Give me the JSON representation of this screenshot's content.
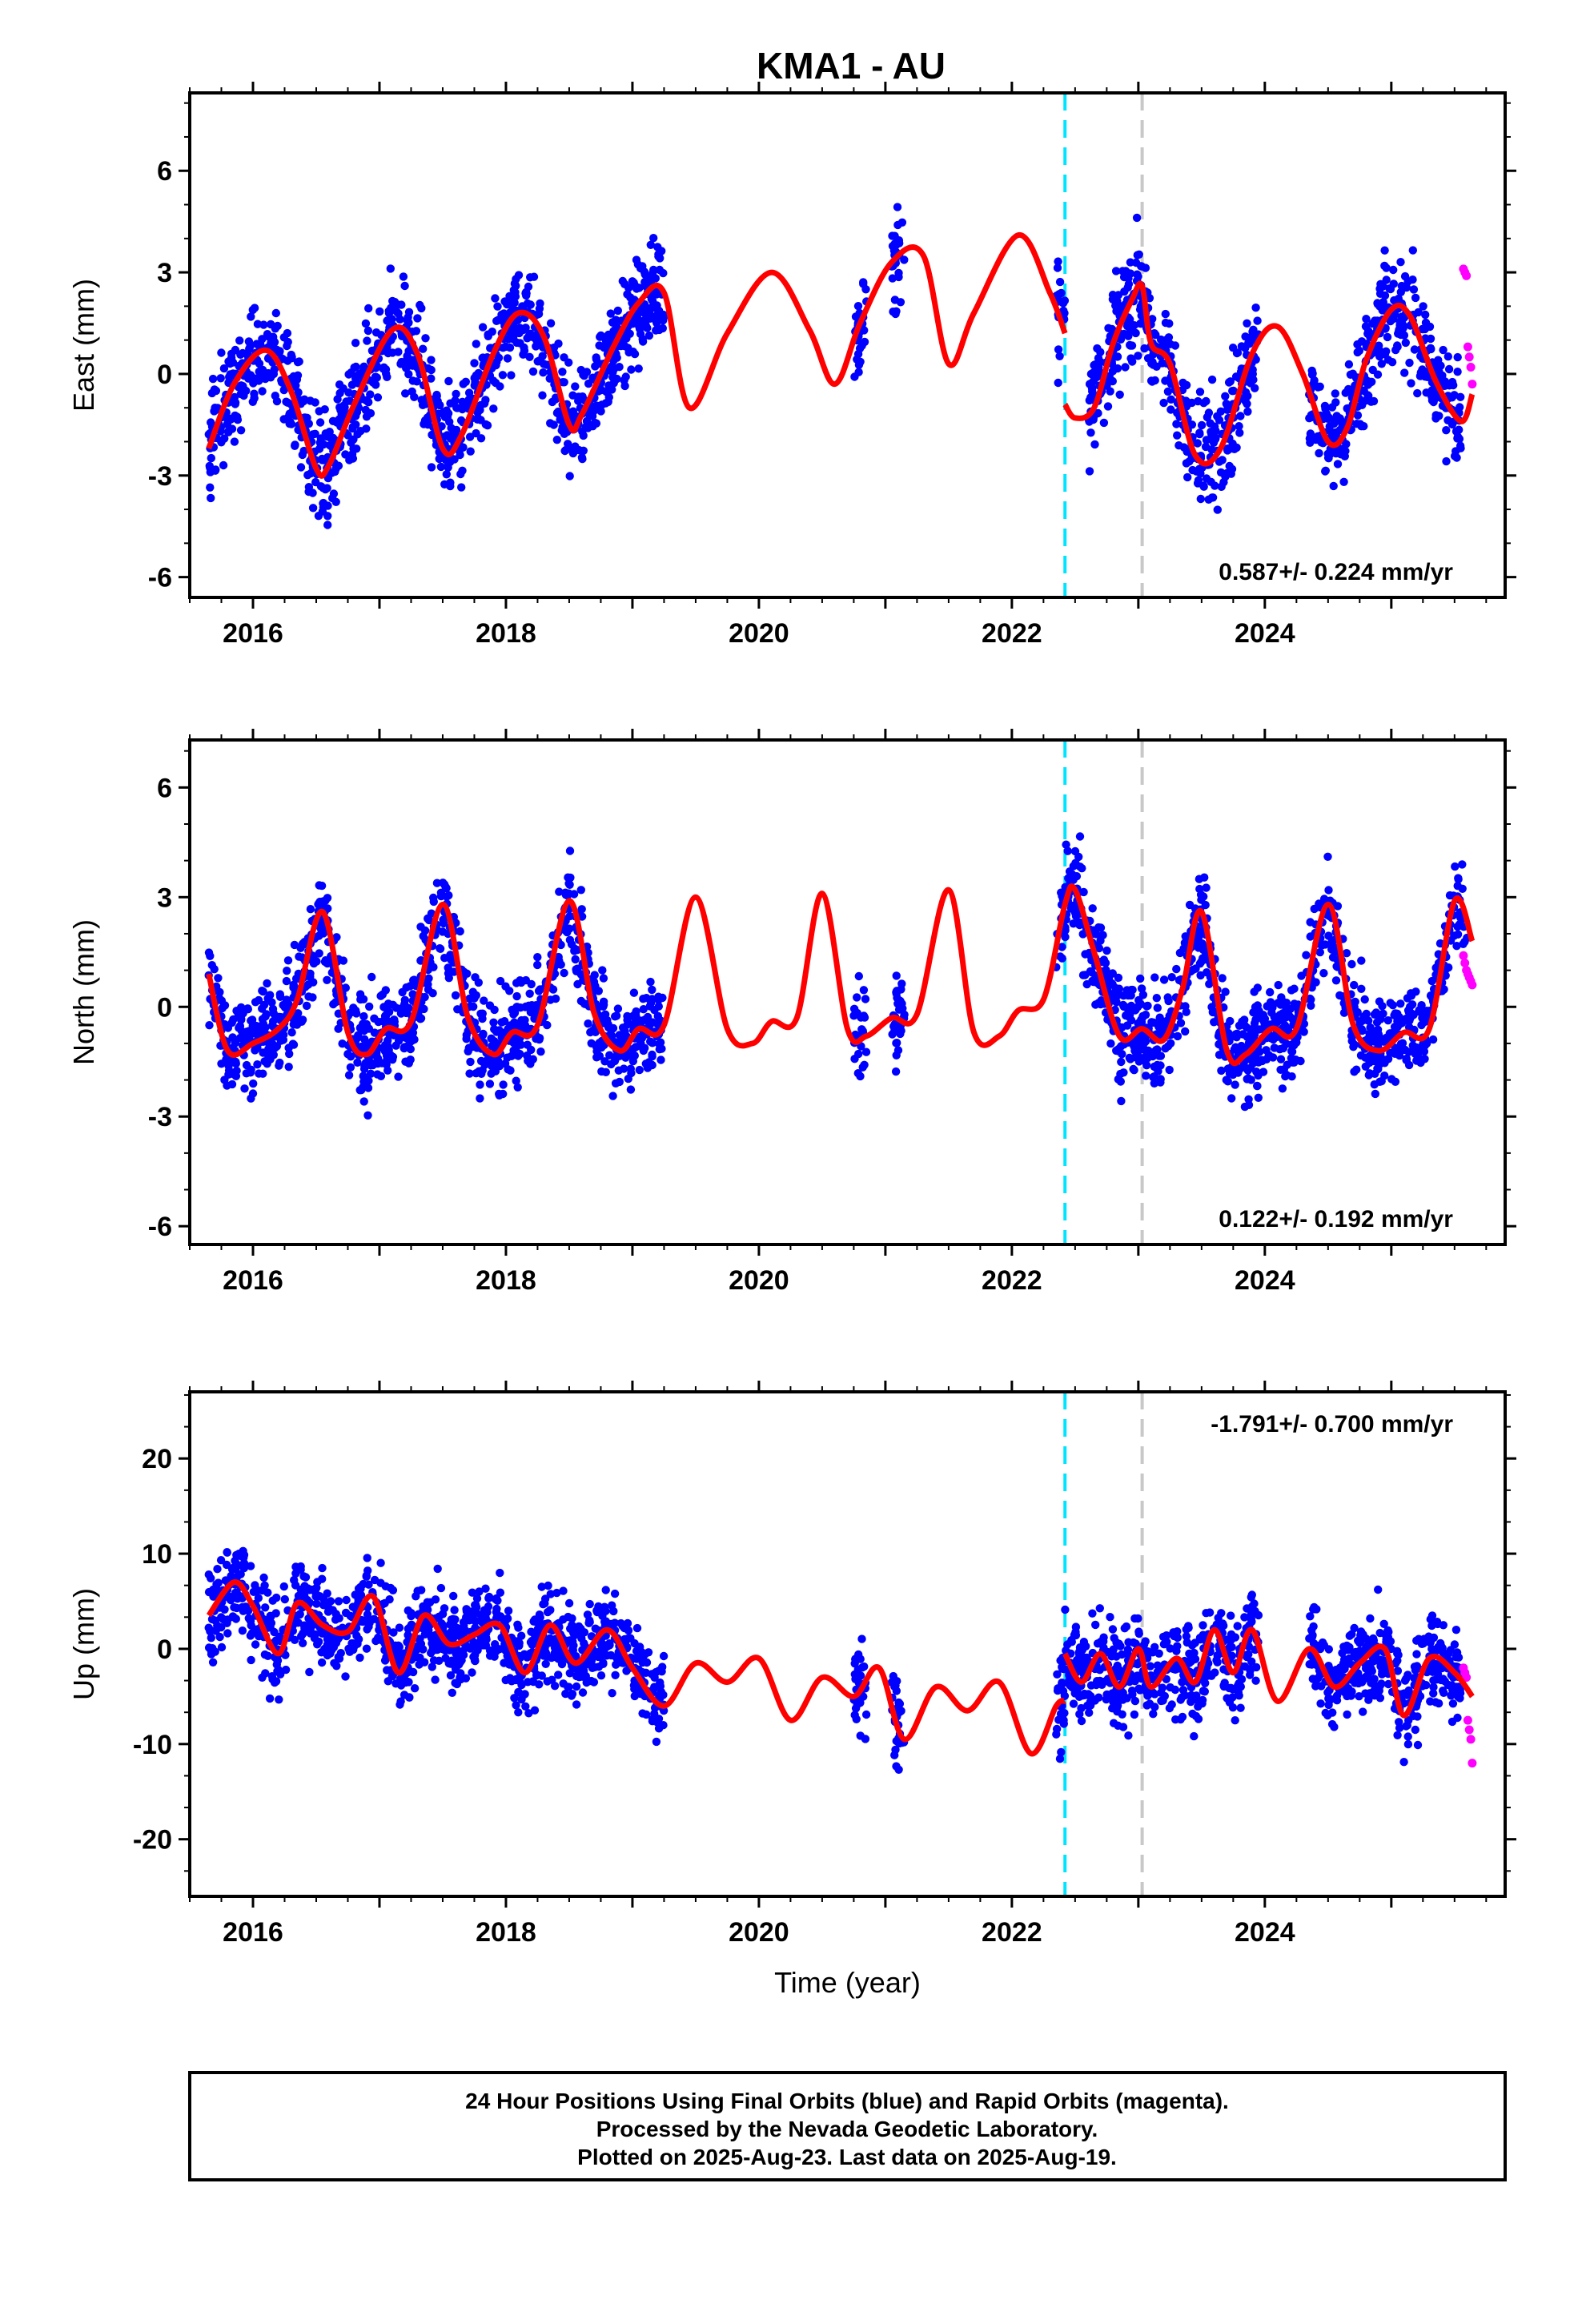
{
  "title": "KMA1 - AU",
  "footer": {
    "line1": "24 Hour Positions Using Final Orbits (blue) and Rapid Orbits (magenta).",
    "line2": "Processed by the Nevada Geodetic Laboratory.",
    "line3": "Plotted on 2025-Aug-23. Last data on 2025-Aug-19."
  },
  "colors": {
    "final_points": "#0000ff",
    "rapid_points": "#ff00ff",
    "model": "#ff0000",
    "antenna_change": "#00e5ff",
    "equipment_change": "#c8c8c8",
    "frame": "#000000"
  },
  "chart_data": [
    {
      "type": "scatter",
      "component": "east",
      "ylabel": "East (mm)",
      "xlabel": "",
      "xlim": [
        2015.5,
        2025.9
      ],
      "ylim": [
        -6.6,
        8.3
      ],
      "xticks": [
        "2016",
        "2018",
        "2020",
        "2022",
        "2024"
      ],
      "yticks": [
        "-6",
        "-3",
        "0",
        "3",
        "6"
      ],
      "rate_label": "0.587+/- 0.224 mm/yr",
      "rate_position": "bottom-right",
      "vlines": [
        {
          "x": 2022.42,
          "style": "cyan-dashed"
        },
        {
          "x": 2023.03,
          "style": "gray-dashed"
        }
      ],
      "data_segments": [
        [
          2015.65,
          2019.25
        ],
        [
          2020.75,
          2020.85
        ],
        [
          2021.05,
          2021.15
        ],
        [
          2022.35,
          2022.42
        ],
        [
          2022.6,
          2023.95
        ],
        [
          2024.35,
          2025.55
        ]
      ],
      "rapid_range": [
        2025.57,
        2025.64
      ],
      "rapid_y": [
        3.1,
        3.0,
        2.9,
        0.8,
        0.5,
        0.2,
        -0.3
      ],
      "model_segments": [
        {
          "x": [
            2015.65,
            2015.85,
            2016.1,
            2016.3,
            2016.5,
            2016.6,
            2016.8,
            2017.1,
            2017.3,
            2017.5,
            2017.65,
            2017.9,
            2018.1,
            2018.3,
            2018.5,
            2018.6,
            2018.85,
            2019.05,
            2019.25,
            2019.45,
            2019.75,
            2020.1,
            2020.4,
            2020.6,
            2020.8,
            2021.05,
            2021.3,
            2021.5,
            2021.7,
            2022.05,
            2022.3,
            2022.42
          ],
          "y": [
            -2.2,
            -0.3,
            0.7,
            -0.5,
            -2.8,
            -2.7,
            -0.9,
            1.3,
            0.6,
            -2.2,
            -1.8,
            0.6,
            1.8,
            1.1,
            -1.5,
            -1.2,
            0.8,
            2.1,
            2.4,
            -1.0,
            1.2,
            3.0,
            1.3,
            -0.3,
            1.5,
            3.3,
            3.5,
            0.3,
            1.8,
            4.1,
            2.4,
            1.2
          ]
        },
        {
          "x": [
            2022.42,
            2022.5,
            2022.65,
            2022.8,
            2022.95,
            2023.03,
            2023.1,
            2023.25,
            2023.45,
            2023.65,
            2023.9,
            2024.1,
            2024.3,
            2024.5,
            2024.65,
            2024.8,
            2025.0,
            2025.15,
            2025.35,
            2025.55,
            2025.64
          ],
          "y": [
            -0.9,
            -1.3,
            -1.0,
            0.9,
            2.2,
            2.6,
            0.9,
            0.3,
            -2.4,
            -2.2,
            0.6,
            1.4,
            0.0,
            -2.0,
            -1.6,
            0.4,
            1.9,
            1.7,
            -0.2,
            -1.4,
            -0.6
          ]
        }
      ],
      "scatter_amplitude": 1.4
    },
    {
      "type": "scatter",
      "component": "north",
      "ylabel": "North (mm)",
      "xlabel": "",
      "xlim": [
        2015.5,
        2025.9
      ],
      "ylim": [
        -6.5,
        7.3
      ],
      "xticks": [
        "2016",
        "2018",
        "2020",
        "2022",
        "2024"
      ],
      "yticks": [
        "-6",
        "-3",
        "0",
        "3",
        "6"
      ],
      "rate_label": "0.122+/- 0.192 mm/yr",
      "rate_position": "bottom-right",
      "vlines": [
        {
          "x": 2022.42,
          "style": "cyan-dashed"
        },
        {
          "x": 2023.03,
          "style": "gray-dashed"
        }
      ],
      "data_segments": [
        [
          2015.65,
          2019.25
        ],
        [
          2020.75,
          2020.85
        ],
        [
          2021.05,
          2021.15
        ],
        [
          2022.35,
          2025.6
        ]
      ],
      "rapid_range": [
        2025.57,
        2025.64
      ],
      "rapid_y": [
        1.4,
        1.2,
        1.0,
        0.9,
        0.8,
        0.7,
        0.6
      ],
      "model_segments": [
        {
          "x": [
            2015.65,
            2015.8,
            2016.0,
            2016.2,
            2016.35,
            2016.55,
            2016.75,
            2016.9,
            2017.05,
            2017.25,
            2017.5,
            2017.7,
            2017.9,
            2018.05,
            2018.25,
            2018.5,
            2018.7,
            2018.9,
            2019.05,
            2019.25,
            2019.5,
            2019.75,
            2019.95,
            2020.1,
            2020.3,
            2020.5,
            2020.7,
            2020.85,
            2021.05,
            2021.25,
            2021.5,
            2021.7,
            2021.9,
            2022.05,
            2022.25,
            2022.42,
            2022.5,
            2022.65,
            2022.85,
            2023.03,
            2023.2,
            2023.35,
            2023.5,
            2023.7,
            2023.85,
            2024.05,
            2024.25,
            2024.5,
            2024.7,
            2024.9,
            2025.1,
            2025.3,
            2025.5,
            2025.64
          ],
          "y": [
            0.9,
            -1.2,
            -1.0,
            -0.6,
            0.2,
            2.6,
            -0.7,
            -1.3,
            -0.6,
            -0.4,
            2.8,
            -0.3,
            -1.3,
            -0.7,
            -0.5,
            2.9,
            -0.2,
            -1.2,
            -0.6,
            -0.5,
            3.0,
            -0.6,
            -1.0,
            -0.4,
            -0.3,
            3.1,
            -0.6,
            -0.8,
            -0.3,
            -0.2,
            3.2,
            -0.7,
            -0.8,
            -0.1,
            0.2,
            2.8,
            3.2,
            1.5,
            -0.8,
            -0.6,
            -0.9,
            0.5,
            2.6,
            -1.2,
            -1.3,
            -0.6,
            -0.6,
            2.8,
            -0.5,
            -1.2,
            -0.7,
            -0.6,
            2.9,
            1.8
          ]
        }
      ],
      "scatter_amplitude": 1.2
    },
    {
      "type": "scatter",
      "component": "up",
      "ylabel": "Up (mm)",
      "xlabel": "Time (year)",
      "xlim": [
        2015.5,
        2025.9
      ],
      "ylim": [
        -26,
        27
      ],
      "xticks": [
        "2016",
        "2018",
        "2020",
        "2022",
        "2024"
      ],
      "yticks": [
        "-20",
        "-10",
        "0",
        "10",
        "20"
      ],
      "rate_label": "-1.791+/- 0.700 mm/yr",
      "rate_position": "top-right",
      "vlines": [
        {
          "x": 2022.42,
          "style": "cyan-dashed"
        },
        {
          "x": 2023.03,
          "style": "gray-dashed"
        }
      ],
      "data_segments": [
        [
          2015.65,
          2019.25
        ],
        [
          2020.75,
          2020.85
        ],
        [
          2021.05,
          2021.15
        ],
        [
          2022.35,
          2023.95
        ],
        [
          2024.35,
          2025.55
        ]
      ],
      "rapid_range": [
        2025.57,
        2025.64
      ],
      "rapid_y": [
        -2.0,
        -2.5,
        -3.0,
        -7.5,
        -8.5,
        -9.5,
        -12.0
      ],
      "model_segments": [
        {
          "x": [
            2015.65,
            2015.85,
            2016.0,
            2016.2,
            2016.35,
            2016.55,
            2016.75,
            2016.95,
            2017.15,
            2017.35,
            2017.55,
            2017.75,
            2017.95,
            2018.15,
            2018.35,
            2018.55,
            2018.8,
            2019.0,
            2019.25,
            2019.5,
            2019.75,
            2020.0,
            2020.25,
            2020.5,
            2020.75,
            2020.95,
            2021.15,
            2021.4,
            2021.65,
            2021.9,
            2022.15,
            2022.35,
            2022.42
          ],
          "y": [
            3.5,
            7.0,
            4.5,
            -0.5,
            4.8,
            2.5,
            1.8,
            5.5,
            -2.5,
            3.5,
            0.5,
            1.5,
            2.5,
            -2.5,
            2.5,
            -1.5,
            2.0,
            -2.0,
            -6.0,
            -1.5,
            -3.5,
            -1.0,
            -7.5,
            -3.0,
            -5.0,
            -2.0,
            -9.5,
            -4.0,
            -6.5,
            -3.5,
            -11.0,
            -6.0,
            -5.5
          ]
        },
        {
          "x": [
            2022.42,
            2022.55,
            2022.7,
            2022.85,
            2023.0,
            2023.1,
            2023.3,
            2023.45,
            2023.6,
            2023.75,
            2023.9,
            2024.1,
            2024.35,
            2024.55,
            2024.75,
            2024.95,
            2025.1,
            2025.3,
            2025.5,
            2025.64
          ],
          "y": [
            -0.5,
            -3.5,
            -0.5,
            -4.0,
            0.0,
            -4.0,
            -1.0,
            -3.5,
            2.0,
            -2.5,
            2.0,
            -5.5,
            0.0,
            -4.0,
            -1.5,
            0.0,
            -7.0,
            -1.0,
            -2.5,
            -5.0
          ]
        }
      ],
      "scatter_amplitude": 4.5
    }
  ]
}
